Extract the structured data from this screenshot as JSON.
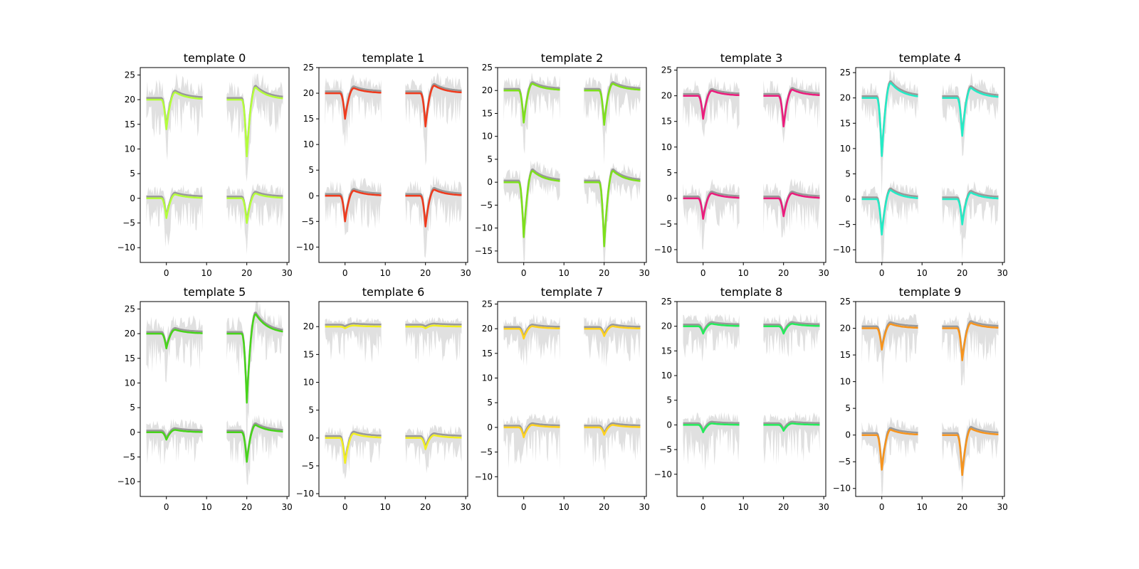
{
  "chart_data": [
    {
      "type": "line",
      "title": "template 0",
      "color": "#b4ff3a",
      "ylim": [
        -13,
        26.5
      ],
      "yticks": [
        -10,
        -5,
        0,
        5,
        10,
        15,
        20,
        25
      ],
      "xticks": [
        0,
        10,
        20,
        30
      ],
      "channels": [
        {
          "offset": 20,
          "amps": [
            {
              "trough": -6,
              "peak": 1.5
            },
            {
              "trough": -11.5,
              "peak": 2.5
            }
          ],
          "bandLow": 7,
          "bandHigh": 3.5
        },
        {
          "offset": 0,
          "amps": [
            {
              "trough": -4,
              "peak": 0.8
            },
            {
              "trough": -5,
              "peak": 1
            }
          ],
          "bandLow": 6,
          "bandHigh": 2
        }
      ]
    },
    {
      "type": "line",
      "title": "template 1",
      "color": "#ef3a1d",
      "ylim": [
        -13,
        25
      ],
      "yticks": [
        -10,
        -5,
        0,
        5,
        10,
        15,
        20,
        25
      ],
      "xticks": [
        0,
        10,
        20,
        30
      ],
      "channels": [
        {
          "offset": 20,
          "amps": [
            {
              "trough": -5,
              "peak": 1
            },
            {
              "trough": -6.5,
              "peak": 1.5
            }
          ],
          "bandLow": 6,
          "bandHigh": 2.5
        },
        {
          "offset": 0,
          "amps": [
            {
              "trough": -5,
              "peak": 1
            },
            {
              "trough": -6,
              "peak": 1.2
            }
          ],
          "bandLow": 6,
          "bandHigh": 2.5
        }
      ]
    },
    {
      "type": "line",
      "title": "template 2",
      "color": "#7de01c",
      "ylim": [
        -17.5,
        25
      ],
      "yticks": [
        -15,
        -10,
        -5,
        0,
        5,
        10,
        15,
        20,
        25
      ],
      "xticks": [
        0,
        10,
        20,
        30
      ],
      "channels": [
        {
          "offset": 20,
          "amps": [
            {
              "trough": -7,
              "peak": 1.5
            },
            {
              "trough": -7.5,
              "peak": 1.5
            }
          ],
          "bandLow": 6,
          "bandHigh": 2.5
        },
        {
          "offset": 0,
          "amps": [
            {
              "trough": -12,
              "peak": 2.5
            },
            {
              "trough": -14,
              "peak": 2.5
            }
          ],
          "bandLow": 4,
          "bandHigh": 2.5
        }
      ]
    },
    {
      "type": "line",
      "title": "template 3",
      "color": "#ec1b7c",
      "ylim": [
        -12.5,
        25.5
      ],
      "yticks": [
        -10,
        -5,
        0,
        5,
        10,
        15,
        20,
        25
      ],
      "xticks": [
        0,
        10,
        20,
        30
      ],
      "channels": [
        {
          "offset": 20,
          "amps": [
            {
              "trough": -4.5,
              "peak": 1
            },
            {
              "trough": -6,
              "peak": 1.2
            }
          ],
          "bandLow": 6,
          "bandHigh": 2.5
        },
        {
          "offset": 0,
          "amps": [
            {
              "trough": -4,
              "peak": 1
            },
            {
              "trough": -3.5,
              "peak": 1
            }
          ],
          "bandLow": 6,
          "bandHigh": 2.5
        }
      ]
    },
    {
      "type": "line",
      "title": "template 4",
      "color": "#22ecc6",
      "ylim": [
        -12.5,
        26
      ],
      "yticks": [
        -10,
        -5,
        0,
        5,
        10,
        15,
        20,
        25
      ],
      "xticks": [
        0,
        10,
        20,
        30
      ],
      "channels": [
        {
          "offset": 20,
          "amps": [
            {
              "trough": -11.5,
              "peak": 3
            },
            {
              "trough": -7.5,
              "peak": 2
            }
          ],
          "bandLow": 4,
          "bandHigh": 2.5
        },
        {
          "offset": 0,
          "amps": [
            {
              "trough": -7,
              "peak": 1.8
            },
            {
              "trough": -5,
              "peak": 1.3
            }
          ],
          "bandLow": 5,
          "bandHigh": 2
        }
      ]
    },
    {
      "type": "line",
      "title": "template 5",
      "color": "#47d41a",
      "ylim": [
        -13,
        26.5
      ],
      "yticks": [
        -10,
        -5,
        0,
        5,
        10,
        15,
        20,
        25
      ],
      "xticks": [
        0,
        10,
        20,
        30
      ],
      "channels": [
        {
          "offset": 20,
          "amps": [
            {
              "trough": -3,
              "peak": 0.8
            },
            {
              "trough": -14,
              "peak": 4
            }
          ],
          "bandLow": 7,
          "bandHigh": 3
        },
        {
          "offset": 0,
          "amps": [
            {
              "trough": -1.5,
              "peak": 0.5
            },
            {
              "trough": -6,
              "peak": 1.5
            }
          ],
          "bandLow": 6,
          "bandHigh": 2
        }
      ]
    },
    {
      "type": "line",
      "title": "template 6",
      "color": "#f2ef22",
      "ylim": [
        -10.5,
        24.5
      ],
      "yticks": [
        -10,
        -5,
        0,
        5,
        10,
        15,
        20
      ],
      "xticks": [
        0,
        10,
        20,
        30
      ],
      "channels": [
        {
          "offset": 20,
          "amps": [
            {
              "trough": -0.3,
              "peak": 0.2
            },
            {
              "trough": -0.3,
              "peak": 0.2
            }
          ],
          "bandLow": 6,
          "bandHigh": 1
        },
        {
          "offset": 0,
          "amps": [
            {
              "trough": -4.5,
              "peak": 0.8
            },
            {
              "trough": -2,
              "peak": 0.5
            }
          ],
          "bandLow": 4,
          "bandHigh": 1.5
        }
      ]
    },
    {
      "type": "line",
      "title": "template 7",
      "color": "#ffd21f",
      "ylim": [
        -14,
        25.5
      ],
      "yticks": [
        -10,
        -5,
        0,
        5,
        10,
        15,
        20,
        25
      ],
      "xticks": [
        0,
        10,
        20,
        30
      ],
      "channels": [
        {
          "offset": 20,
          "amps": [
            {
              "trough": -2,
              "peak": 0.5
            },
            {
              "trough": -1.5,
              "peak": 0.5
            }
          ],
          "bandLow": 6,
          "bandHigh": 2
        },
        {
          "offset": 0,
          "amps": [
            {
              "trough": -2,
              "peak": 0.5
            },
            {
              "trough": -1.5,
              "peak": 0.5
            }
          ],
          "bandLow": 8,
          "bandHigh": 2
        }
      ]
    },
    {
      "type": "line",
      "title": "template 8",
      "color": "#23ec5a",
      "ylim": [
        -14.5,
        25
      ],
      "yticks": [
        -10,
        -5,
        0,
        5,
        10,
        15,
        20,
        25
      ],
      "xticks": [
        0,
        10,
        20,
        30
      ],
      "channels": [
        {
          "offset": 20,
          "amps": [
            {
              "trough": -1.5,
              "peak": 0.5
            },
            {
              "trough": -1.5,
              "peak": 0.5
            }
          ],
          "bandLow": 6,
          "bandHigh": 2
        },
        {
          "offset": 0,
          "amps": [
            {
              "trough": -1.5,
              "peak": 0.3
            },
            {
              "trough": -1.2,
              "peak": 0.3
            }
          ],
          "bandLow": 8,
          "bandHigh": 2
        }
      ]
    },
    {
      "type": "line",
      "title": "template 9",
      "color": "#f7941d",
      "ylim": [
        -11.5,
        25
      ],
      "yticks": [
        -10,
        -5,
        0,
        5,
        10,
        15,
        20,
        25
      ],
      "xticks": [
        0,
        10,
        20,
        30
      ],
      "channels": [
        {
          "offset": 20,
          "amps": [
            {
              "trough": -4,
              "peak": 0.8
            },
            {
              "trough": -6,
              "peak": 1
            }
          ],
          "bandLow": 6,
          "bandHigh": 2
        },
        {
          "offset": 0,
          "amps": [
            {
              "trough": -6.5,
              "peak": 1
            },
            {
              "trough": -7.5,
              "peak": 1.2
            }
          ],
          "bandLow": 4,
          "bandHigh": 2
        }
      ]
    }
  ],
  "xlim": [
    -6.5,
    30.5
  ],
  "segments": [
    {
      "start": -5,
      "end": 9,
      "spike": 0
    },
    {
      "start": 15,
      "end": 29,
      "spike": 20
    }
  ],
  "band_color": "#cccccc",
  "mean_color": "#999999"
}
